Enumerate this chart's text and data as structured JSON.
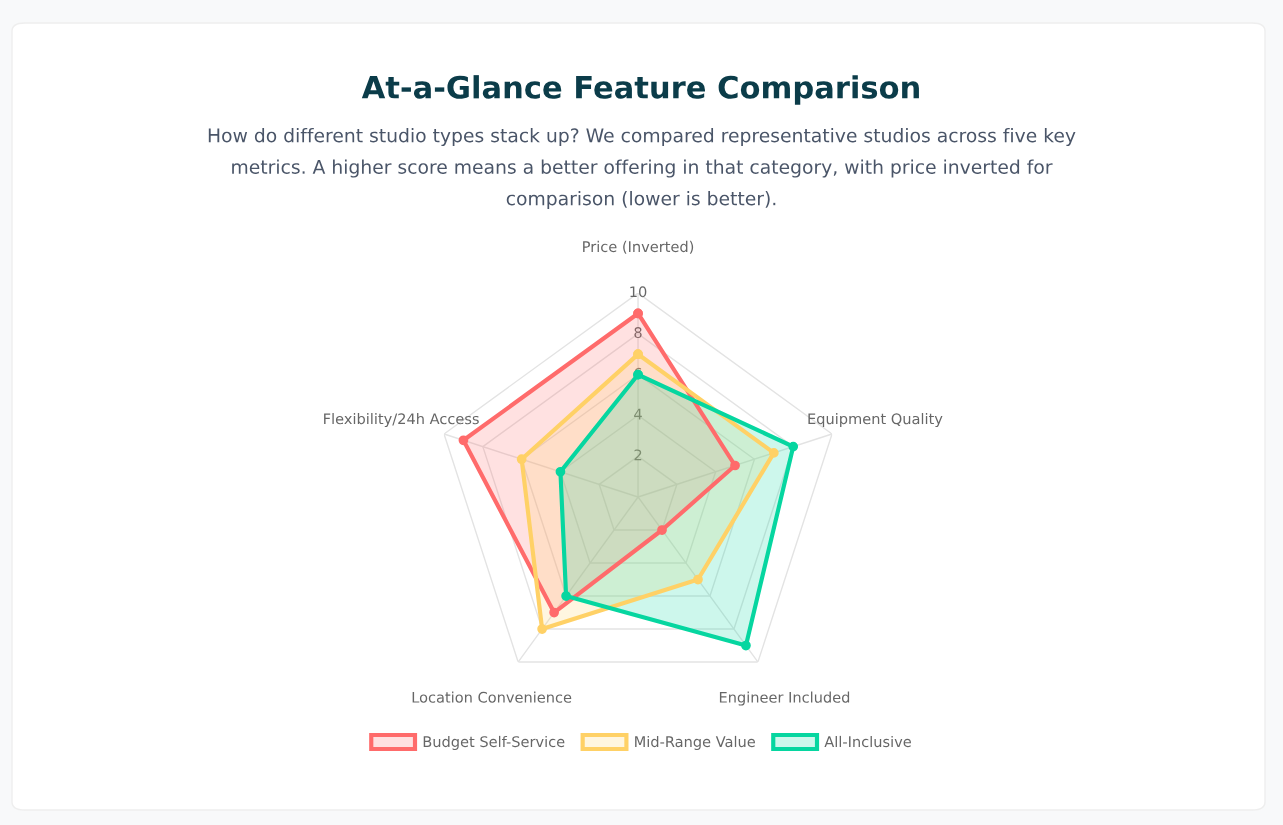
{
  "chart_data": {
    "type": "radar",
    "title": "At-a-Glance Feature Comparison",
    "subtitle": "How do different studio types stack up? We compared representative studios across five key metrics. A higher score means a better offering in that category, with price inverted for comparison (lower is better).",
    "categories": [
      "Price (Inverted)",
      "Equipment Quality",
      "Engineer Included",
      "Location Convenience",
      "Flexibility/24h Access"
    ],
    "series": [
      {
        "name": "Budget Self-Service",
        "color": "#ff6b6b",
        "values": [
          9,
          5,
          2,
          7,
          9
        ]
      },
      {
        "name": "Mid-Range Value",
        "color": "#ffd166",
        "values": [
          7,
          7,
          5,
          8,
          6
        ]
      },
      {
        "name": "All-Inclusive",
        "color": "#06d6a0",
        "values": [
          6,
          8,
          9,
          6,
          4
        ]
      }
    ],
    "ylim": [
      0,
      10
    ],
    "yticks": [
      2,
      4,
      6,
      8,
      10
    ],
    "grid": true,
    "legend": "bottom",
    "marker": "circle",
    "line_style": "solid"
  }
}
